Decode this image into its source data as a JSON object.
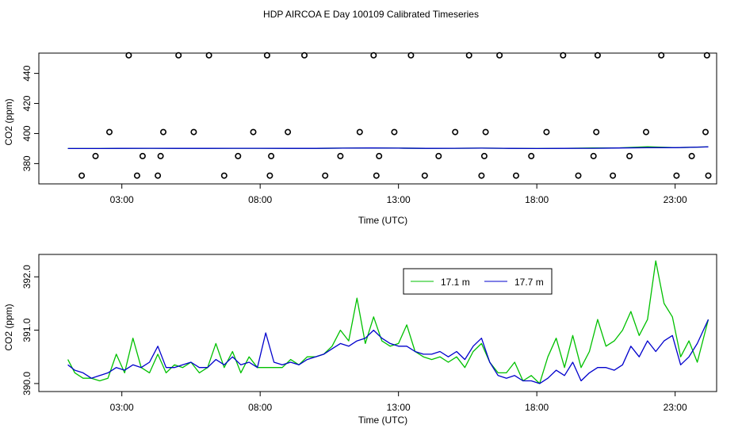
{
  "title": "HDP AIRCOA E  Day 100109  Calibrated Timeseries",
  "chart_data": [
    {
      "type": "scatter",
      "xlabel": "Time (UTC)",
      "ylabel": "CO2 (ppm)",
      "xlim": [
        0.0,
        24.5
      ],
      "ylim": [
        366.5,
        453.5
      ],
      "xticks": [
        3,
        8,
        13,
        18,
        23
      ],
      "xtick_labels": [
        "03:00",
        "08:00",
        "13:00",
        "18:00",
        "23:00"
      ],
      "yticks": [
        380,
        400,
        420,
        440
      ],
      "ytick_labels": [
        "380",
        "400",
        "420",
        "440"
      ],
      "grid": false,
      "reference_points": {
        "x": [
          1.55,
          2.05,
          2.55,
          3.25,
          3.55,
          3.75,
          4.3,
          4.4,
          4.5,
          5.05,
          5.6,
          6.15,
          6.7,
          7.2,
          7.75,
          8.25,
          8.35,
          8.4,
          9.0,
          9.6,
          10.35,
          10.9,
          11.6,
          12.1,
          12.2,
          12.3,
          12.85,
          13.45,
          13.95,
          14.45,
          15.05,
          15.55,
          16.0,
          16.1,
          16.15,
          16.65,
          17.25,
          17.8,
          18.35,
          18.95,
          19.5,
          20.05,
          20.15,
          20.2,
          20.75,
          21.35,
          21.95,
          22.5,
          23.05,
          23.6,
          24.1,
          24.15,
          24.2
        ],
        "y": [
          372,
          385,
          401,
          452,
          372,
          385,
          372,
          385,
          401,
          452,
          401,
          452,
          372,
          385,
          401,
          452,
          372,
          385,
          401,
          452,
          372,
          385,
          401,
          452,
          372,
          385,
          401,
          452,
          372,
          385,
          401,
          452,
          372,
          385,
          401,
          452,
          372,
          385,
          401,
          452,
          372,
          385,
          401,
          452,
          372,
          385,
          401,
          452,
          372,
          385,
          401,
          452,
          372
        ]
      },
      "series": [
        {
          "name": "17.1 m",
          "color": "#00c000",
          "x": [
            1.05,
            2.0,
            3.0,
            4.0,
            5.0,
            6.0,
            7.0,
            8.0,
            9.0,
            10.0,
            11.0,
            12.0,
            13.0,
            14.0,
            15.0,
            16.0,
            17.0,
            18.0,
            19.0,
            20.0,
            21.0,
            22.0,
            23.0,
            24.2
          ],
          "values": [
            390.0,
            390.0,
            390.1,
            390.2,
            390.1,
            390.1,
            390.2,
            390.2,
            390.1,
            390.1,
            390.3,
            390.4,
            390.3,
            390.1,
            390.2,
            390.3,
            390.1,
            390.0,
            390.2,
            390.4,
            390.5,
            391.2,
            390.6,
            391.1
          ]
        },
        {
          "name": "17.7 m",
          "color": "#0000cc",
          "x": [
            1.05,
            2.0,
            3.0,
            4.0,
            5.0,
            6.0,
            7.0,
            8.0,
            9.0,
            10.0,
            11.0,
            12.0,
            13.0,
            14.0,
            15.0,
            16.0,
            17.0,
            18.0,
            19.0,
            20.0,
            21.0,
            22.0,
            23.0,
            24.2
          ],
          "values": [
            390.0,
            390.0,
            390.1,
            390.2,
            390.1,
            390.1,
            390.2,
            390.2,
            390.1,
            390.1,
            390.3,
            390.4,
            390.3,
            390.1,
            390.2,
            390.3,
            390.1,
            390.0,
            390.1,
            390.2,
            390.4,
            390.6,
            390.6,
            391.1
          ]
        }
      ]
    },
    {
      "type": "line",
      "xlabel": "Time (UTC)",
      "ylabel": "CO2 (ppm)",
      "xlim": [
        0.0,
        24.5
      ],
      "ylim": [
        389.85,
        392.42
      ],
      "xticks": [
        3,
        8,
        13,
        18,
        23
      ],
      "xtick_labels": [
        "03:00",
        "08:00",
        "13:00",
        "18:00",
        "23:00"
      ],
      "yticks": [
        390.0,
        391.0,
        392.0
      ],
      "ytick_labels": [
        "390.0",
        "391.0",
        "392.0"
      ],
      "grid": false,
      "legend": "top-center",
      "series": [
        {
          "name": "17.1 m",
          "color": "#00c000",
          "x": [
            1.05,
            1.3,
            1.6,
            1.9,
            2.2,
            2.5,
            2.8,
            3.1,
            3.4,
            3.7,
            4.0,
            4.3,
            4.6,
            4.9,
            5.2,
            5.5,
            5.8,
            6.1,
            6.4,
            6.7,
            7.0,
            7.3,
            7.6,
            7.9,
            8.2,
            8.5,
            8.8,
            9.1,
            9.4,
            9.7,
            10.0,
            10.3,
            10.6,
            10.9,
            11.2,
            11.5,
            11.8,
            12.1,
            12.4,
            12.7,
            13.0,
            13.3,
            13.6,
            13.9,
            14.2,
            14.5,
            14.8,
            15.1,
            15.4,
            15.7,
            16.0,
            16.3,
            16.6,
            16.9,
            17.2,
            17.5,
            17.8,
            18.1,
            18.4,
            18.7,
            19.0,
            19.3,
            19.6,
            19.9,
            20.2,
            20.5,
            20.8,
            21.1,
            21.4,
            21.7,
            22.0,
            22.3,
            22.6,
            22.9,
            23.2,
            23.5,
            23.8,
            24.2
          ],
          "values": [
            390.45,
            390.2,
            390.1,
            390.1,
            390.05,
            390.1,
            390.55,
            390.2,
            390.85,
            390.3,
            390.2,
            390.55,
            390.2,
            390.35,
            390.3,
            390.4,
            390.2,
            390.3,
            390.75,
            390.3,
            390.6,
            390.2,
            390.5,
            390.3,
            390.3,
            390.3,
            390.3,
            390.45,
            390.35,
            390.5,
            390.5,
            390.55,
            390.7,
            391.0,
            390.8,
            391.6,
            390.75,
            391.25,
            390.8,
            390.7,
            390.75,
            391.1,
            390.6,
            390.5,
            390.45,
            390.5,
            390.4,
            390.5,
            390.3,
            390.6,
            390.75,
            390.4,
            390.2,
            390.2,
            390.4,
            390.05,
            390.15,
            390.0,
            390.5,
            390.85,
            390.3,
            390.9,
            390.3,
            390.6,
            391.2,
            390.7,
            390.8,
            391.0,
            391.35,
            390.9,
            391.2,
            392.3,
            391.5,
            391.25,
            390.5,
            390.8,
            390.4,
            391.2
          ]
        },
        {
          "name": "17.7 m",
          "color": "#0000cc",
          "x": [
            1.05,
            1.3,
            1.6,
            1.9,
            2.2,
            2.5,
            2.8,
            3.1,
            3.4,
            3.7,
            4.0,
            4.3,
            4.6,
            4.9,
            5.2,
            5.5,
            5.8,
            6.1,
            6.4,
            6.7,
            7.0,
            7.3,
            7.6,
            7.9,
            8.2,
            8.5,
            8.8,
            9.1,
            9.4,
            9.7,
            10.0,
            10.3,
            10.6,
            10.9,
            11.2,
            11.5,
            11.8,
            12.1,
            12.4,
            12.7,
            13.0,
            13.3,
            13.6,
            13.9,
            14.2,
            14.5,
            14.8,
            15.1,
            15.4,
            15.7,
            16.0,
            16.3,
            16.6,
            16.9,
            17.2,
            17.5,
            17.8,
            18.1,
            18.4,
            18.7,
            19.0,
            19.3,
            19.6,
            19.9,
            20.2,
            20.5,
            20.8,
            21.1,
            21.4,
            21.7,
            22.0,
            22.3,
            22.6,
            22.9,
            23.2,
            23.5,
            23.8,
            24.2
          ],
          "values": [
            390.35,
            390.25,
            390.2,
            390.1,
            390.15,
            390.2,
            390.3,
            390.25,
            390.35,
            390.3,
            390.4,
            390.7,
            390.3,
            390.3,
            390.35,
            390.4,
            390.3,
            390.3,
            390.45,
            390.35,
            390.5,
            390.35,
            390.4,
            390.3,
            390.95,
            390.4,
            390.35,
            390.4,
            390.35,
            390.45,
            390.5,
            390.55,
            390.65,
            390.75,
            390.7,
            390.8,
            390.85,
            391.0,
            390.85,
            390.75,
            390.7,
            390.7,
            390.6,
            390.55,
            390.55,
            390.6,
            390.5,
            390.6,
            390.45,
            390.7,
            390.85,
            390.4,
            390.15,
            390.1,
            390.15,
            390.05,
            390.05,
            390.0,
            390.1,
            390.25,
            390.15,
            390.4,
            390.05,
            390.2,
            390.3,
            390.3,
            390.25,
            390.35,
            390.7,
            390.5,
            390.8,
            390.6,
            390.8,
            390.9,
            390.35,
            390.5,
            390.75,
            391.2
          ]
        }
      ]
    }
  ]
}
